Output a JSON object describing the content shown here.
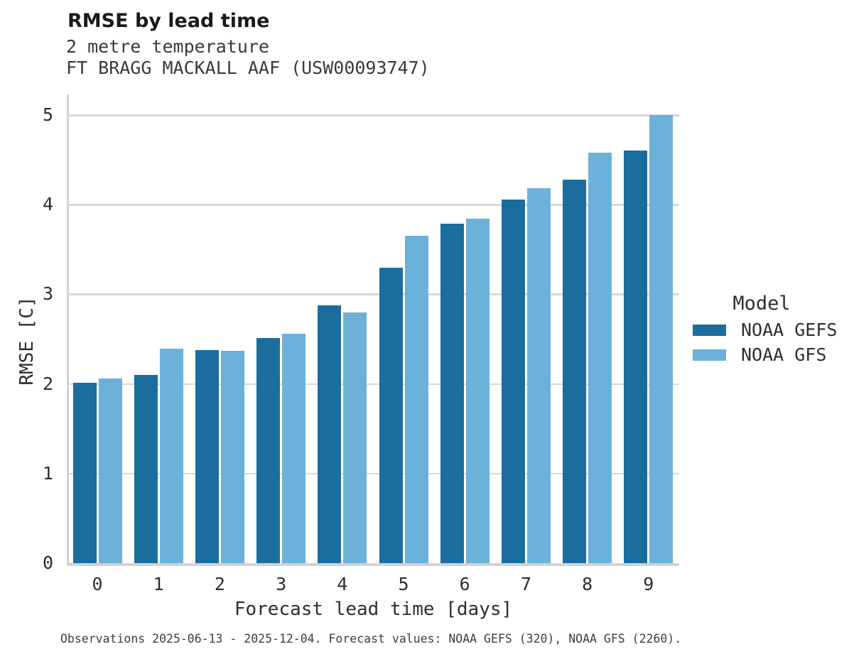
{
  "header": {
    "title": "RMSE by lead time",
    "subtitle_line1": "2 metre temperature",
    "subtitle_line2": "FT BRAGG MACKALL AAF (USW00093747)"
  },
  "colors": {
    "gefs_bar": "#1b6d9e",
    "gfs_bar": "#6bb1d9",
    "gridline": "#d8d8d8",
    "axis_line": "#d2d2d2",
    "title_text": "#1a1a1a",
    "body_text": "#2e2e2e"
  },
  "chart_data": {
    "type": "bar",
    "title": "RMSE by lead time",
    "subtitle": [
      "2 metre temperature",
      "FT BRAGG MACKALL AAF (USW00093747)"
    ],
    "categories": [
      "0",
      "1",
      "2",
      "3",
      "4",
      "5",
      "6",
      "7",
      "8",
      "9"
    ],
    "series": [
      {
        "name": "NOAA GEFS",
        "color": "#1b6d9e",
        "values": [
          2.01,
          2.1,
          2.38,
          2.51,
          2.88,
          3.3,
          3.79,
          4.06,
          4.28,
          4.6
        ]
      },
      {
        "name": "NOAA GFS",
        "color": "#6bb1d9",
        "values": [
          2.06,
          2.39,
          2.37,
          2.56,
          2.8,
          3.65,
          3.84,
          4.18,
          4.58,
          5.0
        ]
      }
    ],
    "xlabel": "Forecast lead time [days]",
    "ylabel": "RMSE [C]",
    "ylim": [
      0,
      5.23
    ],
    "yticks": [
      0,
      1,
      2,
      3,
      4,
      5
    ],
    "grid": true,
    "legend_position": "right-outside"
  },
  "legend": {
    "title": "Model",
    "entries": [
      {
        "label": "NOAA GEFS",
        "color": "#1b6d9e"
      },
      {
        "label": "NOAA GFS",
        "color": "#6bb1d9"
      }
    ]
  },
  "footer": {
    "note": "Observations 2025-06-13 - 2025-12-04. Forecast values: NOAA GEFS (320), NOAA GFS (2260)."
  }
}
